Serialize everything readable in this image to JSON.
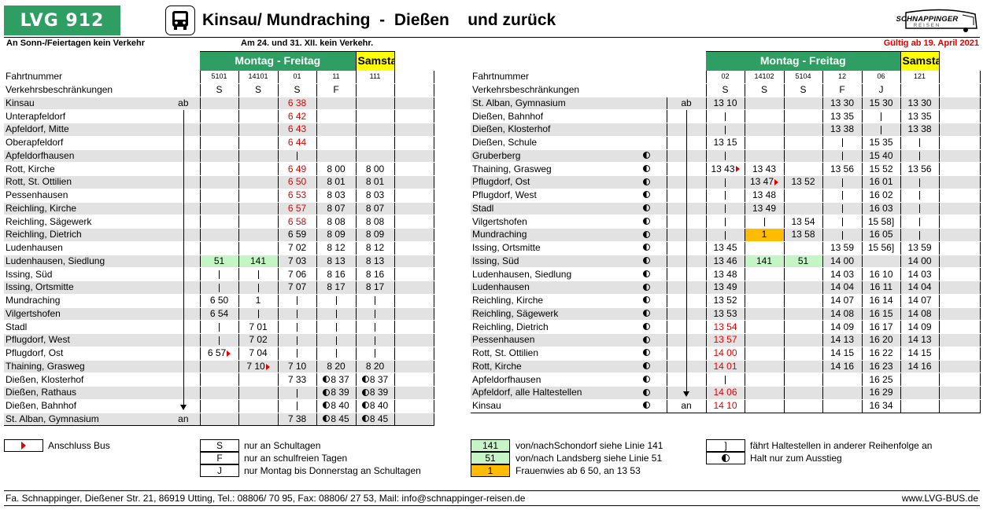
{
  "header": {
    "logo": "LVG 912",
    "title": "Kinsau/ Mundraching  -  Dießen    und zurück",
    "brand_name": "SCHNAPPINGER",
    "brand_sub": "REISEN"
  },
  "notes": {
    "left": "An Sonn-/Feiertagen kein Verkehr",
    "middle": "Am 24. und 31. XII. kein Verkehr.",
    "valid": "Gültig ab 19. April 2021"
  },
  "colors": {
    "green": "#2e9e62",
    "light_green": "#c5f5c5",
    "orange": "#ffbb00",
    "yellow": "#ffff00",
    "red": "#e30000",
    "row_grey": "#e2e2e2"
  },
  "outbound": {
    "head_mf": "Montag - Freitag",
    "head_sa": "Samstag",
    "label_fn": "Fahrtnummer",
    "label_vb": "Verkehrsbeschränkungen",
    "fahrt": [
      "5101",
      "14101",
      "01",
      "11",
      "111"
    ],
    "vb": [
      "S",
      "S",
      "S",
      "F",
      ""
    ],
    "stops": [
      "Kinsau",
      "Unterapfeldorf",
      "Apfeldorf, Mitte",
      "Oberapfeldorf",
      "Apfeldorfhausen",
      "Rott, Kirche",
      "Rott, St. Ottilien",
      "Pessenhausen",
      "Reichling, Kirche",
      "Reichling, Sägewerk",
      "Reichling, Dietrich",
      "Ludenhausen",
      "Ludenhausen, Siedlung",
      "Issing, Süd",
      "Issing, Ortsmitte",
      "Mundraching",
      "Vilgertshofen",
      "Stadl",
      "Pflugdorf, West",
      "Pflugdorf, Ost",
      "Thaining, Grasweg",
      "Dießen, Klosterhof",
      "Dießen, Rathaus",
      "Dießen, Bahnhof",
      "St. Alban, Gymnasium"
    ],
    "ab": "ab",
    "an": "an",
    "times": {
      "c0": [
        "",
        "",
        "",
        "",
        "",
        "",
        "",
        "",
        "",
        "",
        "",
        "",
        "51",
        "",
        "",
        "6 50",
        "6 54",
        "",
        "",
        "6 57",
        "",
        "",
        "",
        "",
        ""
      ],
      "c1": [
        "",
        "",
        "",
        "",
        "",
        "",
        "",
        "",
        "",
        "",
        "",
        "",
        "141",
        "",
        "",
        "1",
        "",
        "7 01",
        "7 02",
        "7 04",
        "7 10",
        "",
        "",
        "",
        ""
      ],
      "c2": [
        "6 38",
        "6 42",
        "6 43",
        "6 44",
        "",
        "6 49",
        "6 50",
        "6 53",
        "6 57",
        "6 58",
        "6 59",
        "7 02",
        "7 03",
        "7 06",
        "7 07",
        "",
        "",
        "",
        "",
        "",
        "7 10",
        "7 33",
        "",
        "",
        "7 38"
      ],
      "c3": [
        "",
        "",
        "",
        "",
        "",
        "8 00",
        "8 01",
        "8 03",
        "8 07",
        "8 08",
        "8 09",
        "8 12",
        "8 13",
        "8 16",
        "8 17",
        "",
        "",
        "",
        "",
        "",
        "8 20",
        "8 37",
        "8 39",
        "8 40",
        "8 45"
      ],
      "c4": [
        "",
        "",
        "",
        "",
        "",
        "8 00",
        "8 01",
        "8 03",
        "8 07",
        "8 08",
        "8 09",
        "8 12",
        "8 13",
        "8 16",
        "8 17",
        "",
        "",
        "",
        "",
        "",
        "8 20",
        "8 37",
        "8 39",
        "8 40",
        "8 45"
      ]
    }
  },
  "inbound": {
    "head_mf": "Montag - Freitag",
    "head_sa": "Samstag",
    "label_fn": "Fahrtnummer",
    "label_vb": "Verkehrsbeschränkungen",
    "fahrt": [
      "02",
      "14102",
      "5104",
      "12",
      "06",
      "121"
    ],
    "vb": [
      "S",
      "S",
      "S",
      "F",
      "J",
      ""
    ],
    "stops": [
      "St. Alban, Gymnasium",
      "Dießen, Bahnhof",
      "Dießen, Klosterhof",
      "Dießen, Schule",
      "Gruberberg",
      "Thaining, Grasweg",
      "Pflugdorf, Ost",
      "Pflugdorf, West",
      "Stadl",
      "Vilgertshofen",
      "Mundraching",
      "Issing, Ortsmitte",
      "Issing, Süd",
      "Ludenhausen, Siedlung",
      "Ludenhausen",
      "Reichling, Kirche",
      "Reichling, Sägewerk",
      "Reichling, Dietrich",
      "Pessenhausen",
      "Rott, St. Ottilien",
      "Rott, Kirche",
      "Apfeldorfhausen",
      "Apfeldorf, alle Haltestellen",
      "Kinsau"
    ],
    "ab": "ab",
    "an": "an",
    "times": {
      "c0": [
        "13 10",
        "",
        "",
        "13 15",
        "",
        "13 43",
        "",
        "",
        "",
        "",
        "",
        "13 45",
        "13 46",
        "13 48",
        "13 49",
        "13 52",
        "13 53",
        "13 54",
        "13 57",
        "14 00",
        "14 01",
        "",
        "14 06",
        "14 10"
      ],
      "c1": [
        "",
        "",
        "",
        "",
        "",
        "13 43",
        "13 47",
        "13 48",
        "13 49",
        "",
        "1",
        "",
        "141",
        "",
        "",
        "",
        "",
        "",
        "",
        "",
        "",
        "",
        "",
        ""
      ],
      "c2": [
        "",
        "",
        "",
        "",
        "",
        "",
        "13 52",
        "",
        "",
        "13 54",
        "13 58",
        "",
        "51",
        "",
        "",
        "",
        "",
        "",
        "",
        "",
        "",
        "",
        "",
        ""
      ],
      "c3": [
        "13 30",
        "13 35",
        "13 38",
        "",
        "",
        "13 56",
        "",
        "",
        "",
        "",
        "",
        "13 59",
        "14 00",
        "14 03",
        "14 04",
        "14 07",
        "14 08",
        "14 09",
        "14 13",
        "14 15",
        "14 16",
        "",
        "",
        ""
      ],
      "c4": [
        "15 30",
        "",
        "",
        "15 35",
        "15 40",
        "15 52",
        "16 01",
        "16 02",
        "16 03",
        "15 58]",
        "16 05",
        "15 56]",
        "",
        "16 10",
        "16 11",
        "16 14",
        "16 15",
        "16 17",
        "16 20",
        "16 22",
        "16 23",
        "16 25",
        "16 29",
        "16 34"
      ],
      "c5": [
        "13 30",
        "13 35",
        "13 38",
        "",
        "",
        "13 56",
        "",
        "",
        "",
        "",
        "",
        "13 59",
        "14 00",
        "14 03",
        "14 04",
        "14 07",
        "14 08",
        "14 09",
        "14 13",
        "14 15",
        "14 16",
        "",
        "",
        ""
      ]
    }
  },
  "legend": {
    "anschluss": "Anschluss Bus",
    "S_key": "S",
    "S_text": "nur an Schultagen",
    "F_key": "F",
    "F_text": "nur an schulfreien Tagen",
    "J_key": "J",
    "J_text": "nur Montag bis Donnerstag an Schultagen",
    "k141": "141",
    "t141": "von/nachSchondorf siehe Linie 141",
    "k51": "51",
    "t51": "von/nach Landsberg siehe Linie 51",
    "k1": "1",
    "t1": "Frauenwies ab 6 50, an 13 53",
    "bracket_key": "]",
    "bracket_text": "fährt Haltestellen in anderer Reihenfolge an",
    "half_text": "Halt nur zum Ausstieg"
  },
  "footer": {
    "left": "Fa. Schnappinger, Dießener Str. 21, 86919 Utting, Tel.: 08806/ 70 95, Fax: 08806/ 27 53, Mail: info@schnappinger-reisen.de",
    "right": "www.LVG-BUS.de"
  }
}
